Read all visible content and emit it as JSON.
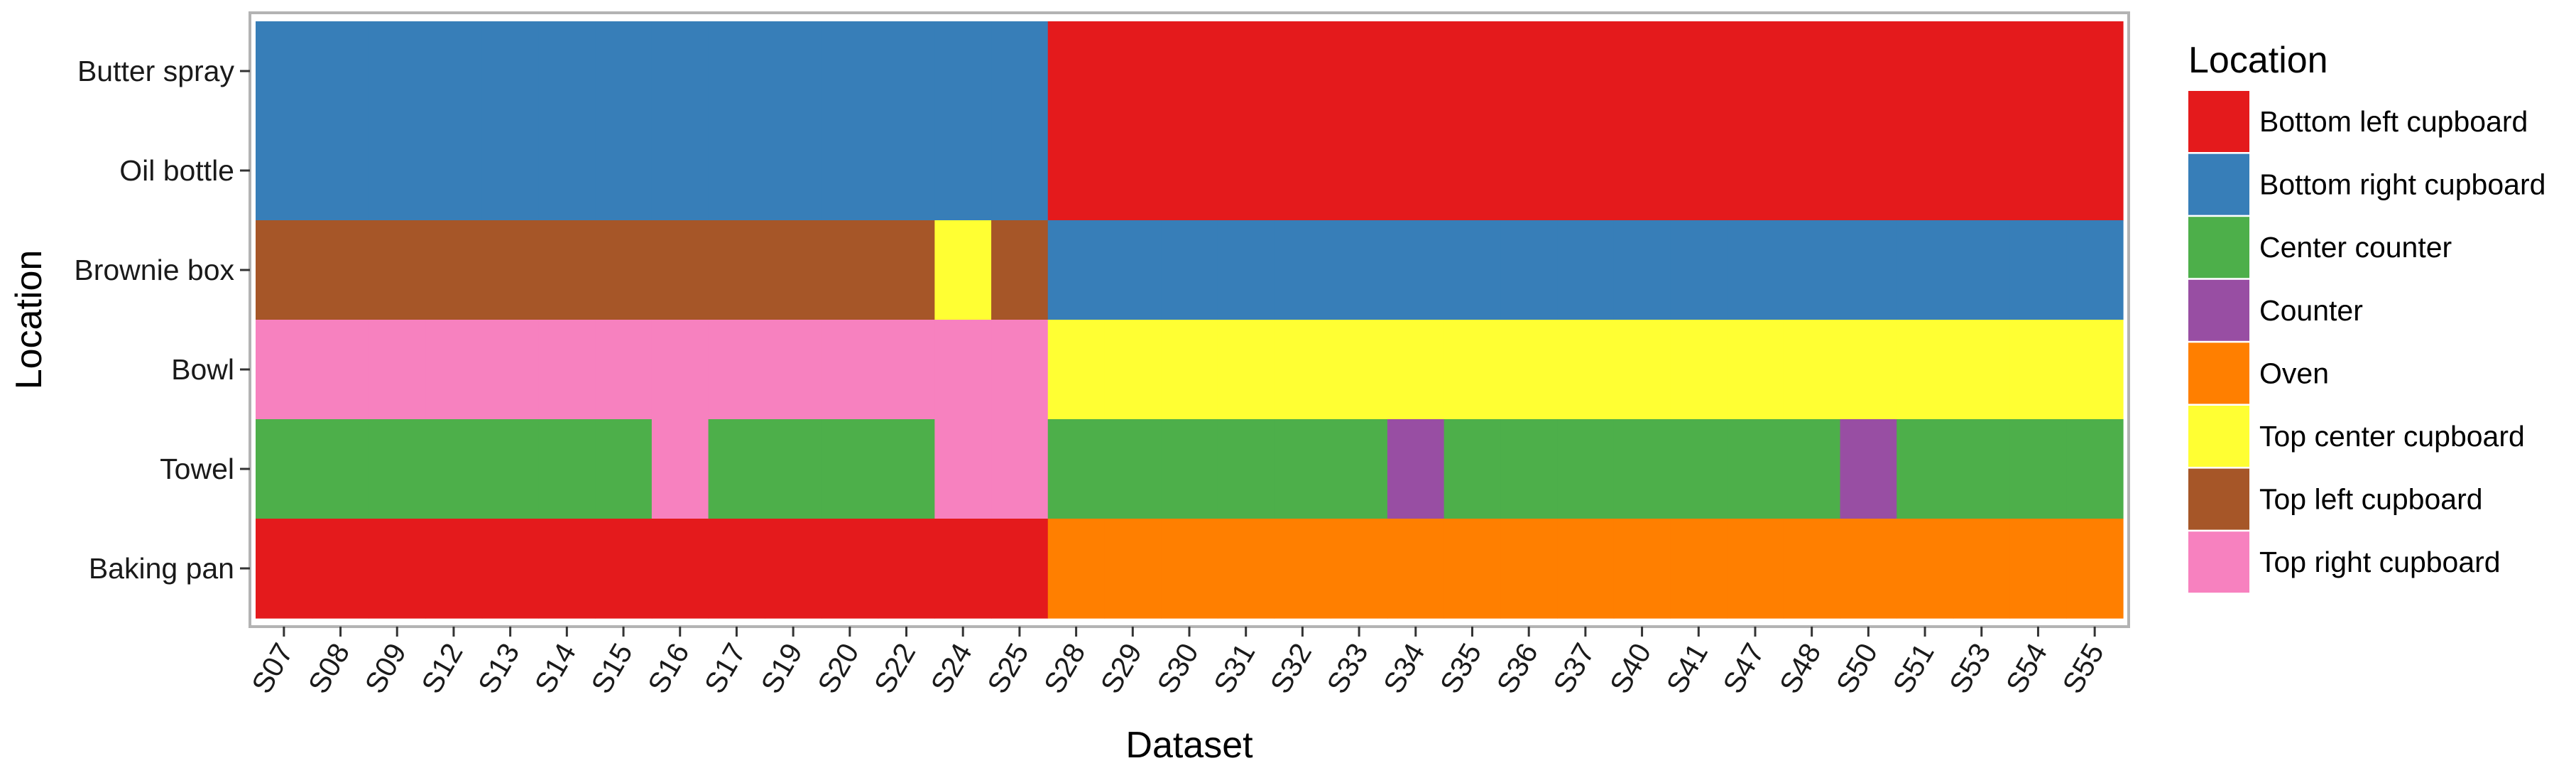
{
  "chart_data": {
    "type": "heatmap",
    "xlabel": "Dataset",
    "ylabel": "Location",
    "x_categories": [
      "S07",
      "S08",
      "S09",
      "S12",
      "S13",
      "S14",
      "S15",
      "S16",
      "S17",
      "S19",
      "S20",
      "S22",
      "S24",
      "S25",
      "S28",
      "S29",
      "S30",
      "S31",
      "S32",
      "S33",
      "S34",
      "S35",
      "S36",
      "S37",
      "S40",
      "S41",
      "S47",
      "S48",
      "S50",
      "S51",
      "S53",
      "S54",
      "S55"
    ],
    "y_categories": [
      "Butter spray",
      "Oil bottle",
      "Brownie box",
      "Bowl",
      "Towel",
      "Baking pan"
    ],
    "legend_title": "Location",
    "legend_position": "right",
    "legend": [
      {
        "label": "Bottom left cupboard",
        "color": "#E41A1C"
      },
      {
        "label": "Bottom right cupboard",
        "color": "#377EB8"
      },
      {
        "label": "Center counter",
        "color": "#4DAF4A"
      },
      {
        "label": "Counter",
        "color": "#984EA3"
      },
      {
        "label": "Oven",
        "color": "#FF7F00"
      },
      {
        "label": "Top center cupboard",
        "color": "#FFFF33"
      },
      {
        "label": "Top left cupboard",
        "color": "#A65628"
      },
      {
        "label": "Top right cupboard",
        "color": "#F781BF"
      }
    ],
    "cells": {
      "Butter spray": [
        "Bottom right cupboard",
        "Bottom right cupboard",
        "Bottom right cupboard",
        "Bottom right cupboard",
        "Bottom right cupboard",
        "Bottom right cupboard",
        "Bottom right cupboard",
        "Bottom right cupboard",
        "Bottom right cupboard",
        "Bottom right cupboard",
        "Bottom right cupboard",
        "Bottom right cupboard",
        "Bottom right cupboard",
        "Bottom right cupboard",
        "Bottom left cupboard",
        "Bottom left cupboard",
        "Bottom left cupboard",
        "Bottom left cupboard",
        "Bottom left cupboard",
        "Bottom left cupboard",
        "Bottom left cupboard",
        "Bottom left cupboard",
        "Bottom left cupboard",
        "Bottom left cupboard",
        "Bottom left cupboard",
        "Bottom left cupboard",
        "Bottom left cupboard",
        "Bottom left cupboard",
        "Bottom left cupboard",
        "Bottom left cupboard",
        "Bottom left cupboard",
        "Bottom left cupboard",
        "Bottom left cupboard"
      ],
      "Oil bottle": [
        "Bottom right cupboard",
        "Bottom right cupboard",
        "Bottom right cupboard",
        "Bottom right cupboard",
        "Bottom right cupboard",
        "Bottom right cupboard",
        "Bottom right cupboard",
        "Bottom right cupboard",
        "Bottom right cupboard",
        "Bottom right cupboard",
        "Bottom right cupboard",
        "Bottom right cupboard",
        "Bottom right cupboard",
        "Bottom right cupboard",
        "Bottom left cupboard",
        "Bottom left cupboard",
        "Bottom left cupboard",
        "Bottom left cupboard",
        "Bottom left cupboard",
        "Bottom left cupboard",
        "Bottom left cupboard",
        "Bottom left cupboard",
        "Bottom left cupboard",
        "Bottom left cupboard",
        "Bottom left cupboard",
        "Bottom left cupboard",
        "Bottom left cupboard",
        "Bottom left cupboard",
        "Bottom left cupboard",
        "Bottom left cupboard",
        "Bottom left cupboard",
        "Bottom left cupboard",
        "Bottom left cupboard"
      ],
      "Brownie box": [
        "Top left cupboard",
        "Top left cupboard",
        "Top left cupboard",
        "Top left cupboard",
        "Top left cupboard",
        "Top left cupboard",
        "Top left cupboard",
        "Top left cupboard",
        "Top left cupboard",
        "Top left cupboard",
        "Top left cupboard",
        "Top left cupboard",
        "Top center cupboard",
        "Top left cupboard",
        "Bottom right cupboard",
        "Bottom right cupboard",
        "Bottom right cupboard",
        "Bottom right cupboard",
        "Bottom right cupboard",
        "Bottom right cupboard",
        "Bottom right cupboard",
        "Bottom right cupboard",
        "Bottom right cupboard",
        "Bottom right cupboard",
        "Bottom right cupboard",
        "Bottom right cupboard",
        "Bottom right cupboard",
        "Bottom right cupboard",
        "Bottom right cupboard",
        "Bottom right cupboard",
        "Bottom right cupboard",
        "Bottom right cupboard",
        "Bottom right cupboard"
      ],
      "Bowl": [
        "Top right cupboard",
        "Top right cupboard",
        "Top right cupboard",
        "Top right cupboard",
        "Top right cupboard",
        "Top right cupboard",
        "Top right cupboard",
        "Top right cupboard",
        "Top right cupboard",
        "Top right cupboard",
        "Top right cupboard",
        "Top right cupboard",
        "Top right cupboard",
        "Top right cupboard",
        "Top center cupboard",
        "Top center cupboard",
        "Top center cupboard",
        "Top center cupboard",
        "Top center cupboard",
        "Top center cupboard",
        "Top center cupboard",
        "Top center cupboard",
        "Top center cupboard",
        "Top center cupboard",
        "Top center cupboard",
        "Top center cupboard",
        "Top center cupboard",
        "Top center cupboard",
        "Top center cupboard",
        "Top center cupboard",
        "Top center cupboard",
        "Top center cupboard",
        "Top center cupboard"
      ],
      "Towel": [
        "Center counter",
        "Center counter",
        "Center counter",
        "Center counter",
        "Center counter",
        "Center counter",
        "Center counter",
        "Top right cupboard",
        "Center counter",
        "Center counter",
        "Center counter",
        "Center counter",
        "Top right cupboard",
        "Top right cupboard",
        "Center counter",
        "Center counter",
        "Center counter",
        "Center counter",
        "Center counter",
        "Center counter",
        "Counter",
        "Center counter",
        "Center counter",
        "Center counter",
        "Center counter",
        "Center counter",
        "Center counter",
        "Center counter",
        "Counter",
        "Center counter",
        "Center counter",
        "Center counter",
        "Center counter"
      ],
      "Baking pan": [
        "Bottom left cupboard",
        "Bottom left cupboard",
        "Bottom left cupboard",
        "Bottom left cupboard",
        "Bottom left cupboard",
        "Bottom left cupboard",
        "Bottom left cupboard",
        "Bottom left cupboard",
        "Bottom left cupboard",
        "Bottom left cupboard",
        "Bottom left cupboard",
        "Bottom left cupboard",
        "Bottom left cupboard",
        "Bottom left cupboard",
        "Oven",
        "Oven",
        "Oven",
        "Oven",
        "Oven",
        "Oven",
        "Oven",
        "Oven",
        "Oven",
        "Oven",
        "Oven",
        "Oven",
        "Oven",
        "Oven",
        "Oven",
        "Oven",
        "Oven",
        "Oven",
        "Oven"
      ]
    }
  }
}
